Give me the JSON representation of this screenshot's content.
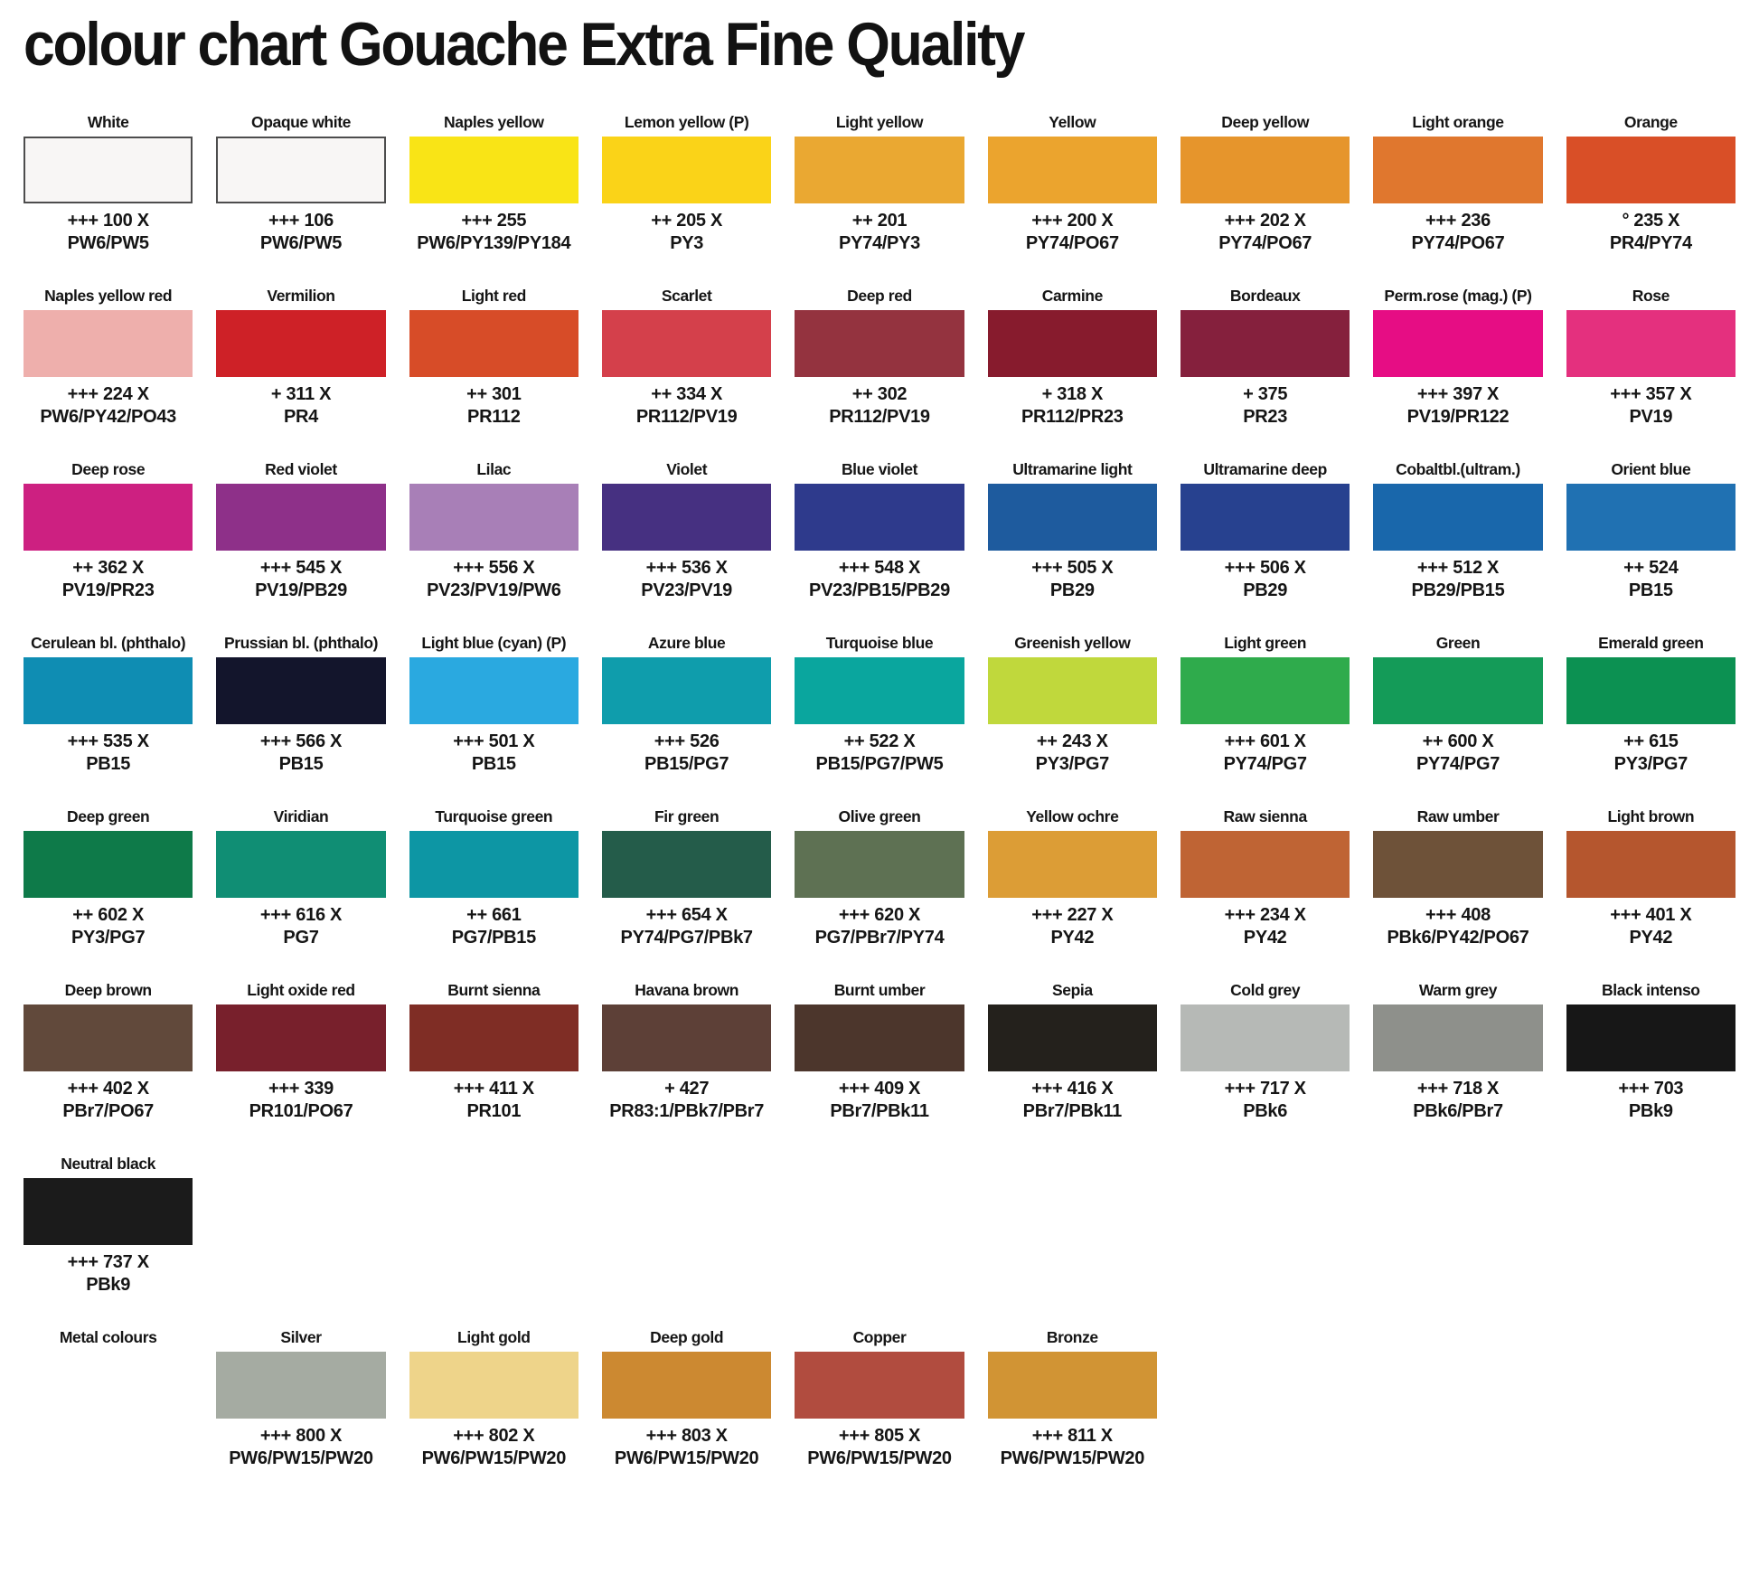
{
  "title": "colour chart Gouache Extra Fine Quality",
  "rows": [
    {
      "cells": [
        {
          "name": "White",
          "color": "#f8f6f5",
          "bordered": true,
          "code": "+++ 100 X",
          "pigments": "PW6/PW5"
        },
        {
          "name": "Opaque white",
          "color": "#f8f6f5",
          "bordered": true,
          "code": "+++ 106",
          "pigments": "PW6/PW5"
        },
        {
          "name": "Naples yellow",
          "color": "#f9e416",
          "code": "+++ 255",
          "pigments": "PW6/PY139/PY184"
        },
        {
          "name": "Lemon yellow (P)",
          "color": "#fad318",
          "code": "++ 205 X",
          "pigments": "PY3"
        },
        {
          "name": "Light yellow",
          "color": "#eaa832",
          "code": "++ 201",
          "pigments": "PY74/PY3"
        },
        {
          "name": "Yellow",
          "color": "#eba42e",
          "code": "+++ 200 X",
          "pigments": "PY74/PO67"
        },
        {
          "name": "Deep yellow",
          "color": "#e6952c",
          "code": "+++ 202 X",
          "pigments": "PY74/PO67"
        },
        {
          "name": "Light orange",
          "color": "#e0772e",
          "code": "+++ 236",
          "pigments": "PY74/PO67"
        },
        {
          "name": "Orange",
          "color": "#d94f27",
          "code": "° 235 X",
          "pigments": "PR4/PY74"
        }
      ]
    },
    {
      "cells": [
        {
          "name": "Naples yellow red",
          "color": "#eeafac",
          "code": "+++ 224 X",
          "pigments": "PW6/PY42/PO43"
        },
        {
          "name": "Vermilion",
          "color": "#ce2127",
          "code": "+ 311 X",
          "pigments": "PR4"
        },
        {
          "name": "Light red",
          "color": "#d74c28",
          "code": "++ 301",
          "pigments": "PR112"
        },
        {
          "name": "Scarlet",
          "color": "#d4404b",
          "code": "++ 334 X",
          "pigments": "PR112/PV19"
        },
        {
          "name": "Deep red",
          "color": "#94333f",
          "code": "++ 302",
          "pigments": "PR112/PV19"
        },
        {
          "name": "Carmine",
          "color": "#871b2d",
          "code": "+ 318 X",
          "pigments": "PR112/PR23"
        },
        {
          "name": "Bordeaux",
          "color": "#85203d",
          "code": "+ 375",
          "pigments": "PR23"
        },
        {
          "name": "Perm.rose (mag.) (P)",
          "color": "#e60d84",
          "code": "+++ 397 X",
          "pigments": "PV19/PR122"
        },
        {
          "name": "Rose",
          "color": "#e4307e",
          "code": "+++ 357 X",
          "pigments": "PV19"
        }
      ]
    },
    {
      "cells": [
        {
          "name": "Deep rose",
          "color": "#cd2081",
          "code": "++ 362 X",
          "pigments": "PV19/PR23"
        },
        {
          "name": "Red violet",
          "color": "#8e3089",
          "code": "+++ 545 X",
          "pigments": "PV19/PB29"
        },
        {
          "name": "Lilac",
          "color": "#a87fb7",
          "code": "+++ 556 X",
          "pigments": "PV23/PV19/PW6"
        },
        {
          "name": "Violet",
          "color": "#463081",
          "code": "+++ 536 X",
          "pigments": "PV23/PV19"
        },
        {
          "name": "Blue violet",
          "color": "#2e3a8c",
          "code": "+++ 548 X",
          "pigments": "PV23/PB15/PB29"
        },
        {
          "name": "Ultramarine light",
          "color": "#1e5b9e",
          "code": "+++ 505 X",
          "pigments": "PB29"
        },
        {
          "name": "Ultramarine deep",
          "color": "#27418f",
          "code": "+++ 506 X",
          "pigments": "PB29"
        },
        {
          "name": "Cobaltbl.(ultram.)",
          "color": "#1967ab",
          "code": "+++ 512 X",
          "pigments": "PB29/PB15"
        },
        {
          "name": "Orient blue",
          "color": "#2071b2",
          "code": "++ 524",
          "pigments": "PB15"
        }
      ]
    },
    {
      "cells": [
        {
          "name": "Cerulean bl. (phthalo)",
          "color": "#0f8db3",
          "code": "+++ 535 X",
          "pigments": "PB15"
        },
        {
          "name": "Prussian bl. (phthalo)",
          "color": "#13152c",
          "code": "+++ 566 X",
          "pigments": "PB15"
        },
        {
          "name": "Light blue (cyan) (P)",
          "color": "#2aa9e0",
          "code": "+++ 501 X",
          "pigments": "PB15"
        },
        {
          "name": "Azure blue",
          "color": "#0f9dac",
          "code": "+++ 526",
          "pigments": "PB15/PG7"
        },
        {
          "name": "Turquoise blue",
          "color": "#0aa69e",
          "code": "++ 522 X",
          "pigments": "PB15/PG7/PW5"
        },
        {
          "name": "Greenish yellow",
          "color": "#c0d83c",
          "code": "++ 243 X",
          "pigments": "PY3/PG7"
        },
        {
          "name": "Light green",
          "color": "#2fab4c",
          "code": "+++ 601 X",
          "pigments": "PY74/PG7"
        },
        {
          "name": "Green",
          "color": "#149b58",
          "code": "++ 600 X",
          "pigments": "PY74/PG7"
        },
        {
          "name": "Emerald green",
          "color": "#0c9152",
          "code": "++ 615",
          "pigments": "PY3/PG7"
        }
      ]
    },
    {
      "cells": [
        {
          "name": "Deep green",
          "color": "#0e7a49",
          "code": "++ 602 X",
          "pigments": "PY3/PG7"
        },
        {
          "name": "Viridian",
          "color": "#108e74",
          "code": "+++ 616 X",
          "pigments": "PG7"
        },
        {
          "name": "Turquoise green",
          "color": "#0d96a4",
          "code": "++ 661",
          "pigments": "PG7/PB15"
        },
        {
          "name": "Fir green",
          "color": "#245c4a",
          "code": "+++ 654 X",
          "pigments": "PY74/PG7/PBk7"
        },
        {
          "name": "Olive green",
          "color": "#5e7153",
          "code": "+++ 620 X",
          "pigments": "PG7/PBr7/PY74"
        },
        {
          "name": "Yellow ochre",
          "color": "#dc9d36",
          "code": "+++ 227 X",
          "pigments": "PY42"
        },
        {
          "name": "Raw sienna",
          "color": "#bf6434",
          "code": "+++ 234 X",
          "pigments": "PY42"
        },
        {
          "name": "Raw umber",
          "color": "#6e5239",
          "code": "+++ 408",
          "pigments": "PBk6/PY42/PO67"
        },
        {
          "name": "Light brown",
          "color": "#b5562e",
          "code": "+++ 401 X",
          "pigments": "PY42"
        }
      ]
    },
    {
      "cells": [
        {
          "name": "Deep brown",
          "color": "#61493b",
          "code": "+++ 402 X",
          "pigments": "PBr7/PO67"
        },
        {
          "name": "Light oxide red",
          "color": "#78202c",
          "code": "+++ 339",
          "pigments": "PR101/PO67"
        },
        {
          "name": "Burnt sienna",
          "color": "#7f2d25",
          "code": "+++ 411 X",
          "pigments": "PR101"
        },
        {
          "name": "Havana brown",
          "color": "#5d4037",
          "code": "+ 427",
          "pigments": "PR83:1/PBk7/PBr7"
        },
        {
          "name": "Burnt umber",
          "color": "#4c362c",
          "code": "+++ 409 X",
          "pigments": "PBr7/PBk11"
        },
        {
          "name": "Sepia",
          "color": "#24211c",
          "code": "+++ 416 X",
          "pigments": "PBr7/PBk11"
        },
        {
          "name": "Cold grey",
          "color": "#b6b9b6",
          "code": "+++ 717 X",
          "pigments": "PBk6"
        },
        {
          "name": "Warm grey",
          "color": "#8e908b",
          "code": "+++ 718 X",
          "pigments": "PBk6/PBr7"
        },
        {
          "name": "Black intenso",
          "color": "#171717",
          "code": "+++ 703",
          "pigments": "PBk9"
        }
      ]
    },
    {
      "cells": [
        {
          "name": "Neutral black",
          "color": "#1b1b1b",
          "code": "+++ 737 X",
          "pigments": "PBk9"
        },
        null,
        null,
        null,
        null,
        null,
        null,
        null,
        null
      ]
    },
    {
      "cells": [
        {
          "name": "Metal colours",
          "label_only": true
        },
        {
          "name": "Silver",
          "color": "#a5aba2",
          "code": "+++ 800 X",
          "pigments": "PW6/PW15/PW20"
        },
        {
          "name": "Light gold",
          "color": "#eed48a",
          "code": "+++ 802 X",
          "pigments": "PW6/PW15/PW20"
        },
        {
          "name": "Deep gold",
          "color": "#cc8931",
          "code": "+++ 803 X",
          "pigments": "PW6/PW15/PW20"
        },
        {
          "name": "Copper",
          "color": "#b14c3f",
          "code": "+++ 805 X",
          "pigments": "PW6/PW15/PW20"
        },
        {
          "name": "Bronze",
          "color": "#d19434",
          "code": "+++ 811 X",
          "pigments": "PW6/PW15/PW20"
        },
        null,
        null,
        null
      ]
    }
  ]
}
